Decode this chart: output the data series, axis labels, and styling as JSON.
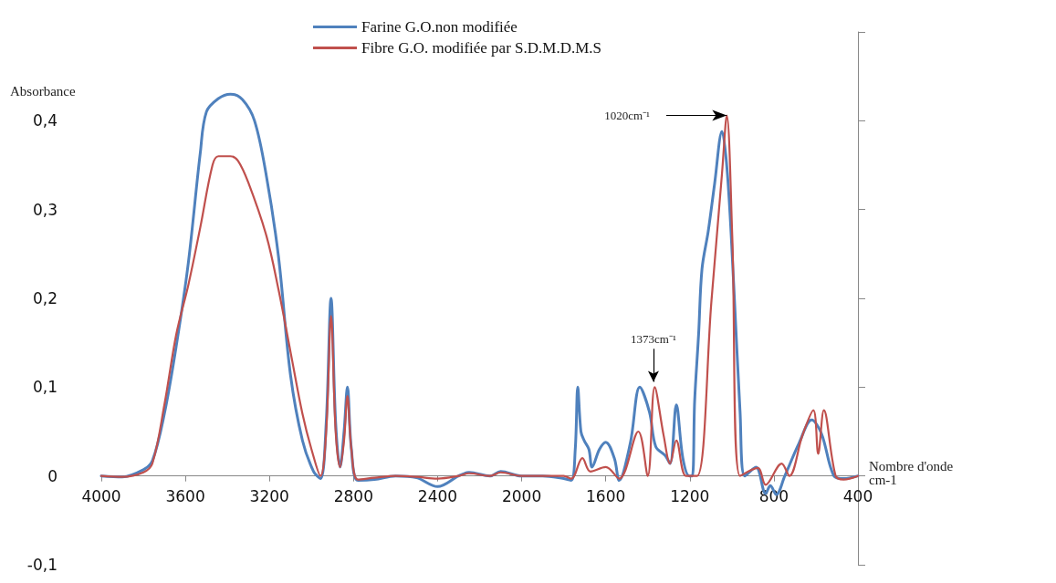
{
  "chart_data": {
    "type": "line",
    "xlabel": "Nombre d'onde\ncm-1",
    "ylabel": "Absorbance",
    "xlim": [
      4000,
      400
    ],
    "xticks": [
      4000,
      3600,
      3200,
      2800,
      2400,
      2000,
      1600,
      1200,
      800,
      400
    ],
    "ylim": [
      -0.1,
      0.5
    ],
    "yticks": [
      {
        "value": -0.1,
        "label": "-0,1"
      },
      {
        "value": 0,
        "label": "0"
      },
      {
        "value": 0.1,
        "label": "0,1"
      },
      {
        "value": 0.2,
        "label": "0,2"
      },
      {
        "value": 0.3,
        "label": "0,3"
      },
      {
        "value": 0.4,
        "label": "0,4"
      },
      {
        "value": 0.5,
        "label": null
      }
    ],
    "grid": false,
    "legend": "top",
    "marker": "none",
    "line_style": "solid",
    "annotations": [
      "1020cm⁻¹",
      {
        "text": "1373cm⁻¹",
        "x": 1373,
        "y": 0.106
      }
    ],
    "series": [
      {
        "name": "Farine G.O.non modifiée",
        "color": "#4f81bd",
        "x": [
          4000,
          3900,
          3800,
          3757,
          3700,
          3643,
          3586,
          3529,
          3500,
          3443,
          3386,
          3329,
          3271,
          3214,
          3157,
          3100,
          3043,
          2990,
          2957,
          2930,
          2907,
          2885,
          2864,
          2845,
          2829,
          2810,
          2779,
          2700,
          2600,
          2500,
          2400,
          2300,
          2250,
          2150,
          2100,
          2000,
          1900,
          1800,
          1764,
          1745,
          1733,
          1718,
          1703,
          1680,
          1665,
          1630,
          1600,
          1559,
          1536,
          1483,
          1438,
          1392,
          1362,
          1317,
          1294,
          1264,
          1233,
          1203,
          1188,
          1177,
          1158,
          1142,
          1112,
          1082,
          1047,
          1021,
          991,
          961,
          938,
          885,
          839,
          817,
          789,
          748,
          680,
          620,
          574,
          514,
          468,
          400
        ],
        "values": [
          0,
          -0.001,
          0.007,
          0.017,
          0.07,
          0.147,
          0.24,
          0.364,
          0.41,
          0.425,
          0.43,
          0.424,
          0.4,
          0.337,
          0.247,
          0.114,
          0.04,
          0.005,
          -0.003,
          0.06,
          0.2,
          0.06,
          0.01,
          0.05,
          0.1,
          0.03,
          -0.005,
          -0.004,
          0,
          -0.002,
          -0.012,
          0,
          0.004,
          0,
          0.005,
          0,
          0,
          -0.003,
          -0.005,
          0.03,
          0.1,
          0.05,
          0.04,
          0.03,
          0.01,
          0.03,
          0.038,
          0.02,
          -0.005,
          0.037,
          0.1,
          0.072,
          0.033,
          0.023,
          0.014,
          0.08,
          0.02,
          0,
          0,
          0.084,
          0.16,
          0.233,
          0.276,
          0.329,
          0.388,
          0.34,
          0.215,
          0.073,
          0,
          0.01,
          -0.02,
          -0.011,
          -0.021,
          0,
          0.037,
          0.063,
          0.048,
          0,
          -0.003,
          0
        ]
      },
      {
        "name": "Fibre G.O. modifiée par S.D.M.D.M.S",
        "color": "#c0504d",
        "x": [
          4000,
          3900,
          3800,
          3757,
          3700,
          3643,
          3586,
          3529,
          3471,
          3443,
          3386,
          3350,
          3300,
          3214,
          3157,
          3100,
          3043,
          3000,
          2957,
          2930,
          2907,
          2885,
          2864,
          2845,
          2829,
          2810,
          2779,
          2700,
          2600,
          2500,
          2400,
          2300,
          2250,
          2150,
          2100,
          2000,
          1900,
          1800,
          1764,
          1711,
          1673,
          1600,
          1536,
          1445,
          1400,
          1367,
          1324,
          1294,
          1264,
          1218,
          1165,
          1097,
          1047,
          1024,
          998,
          961,
          877,
          839,
          763,
          726,
          665,
          612,
          589,
          562,
          506,
          468,
          400
        ],
        "values": [
          0,
          -0.001,
          0.004,
          0.014,
          0.08,
          0.16,
          0.215,
          0.28,
          0.35,
          0.36,
          0.36,
          0.355,
          0.33,
          0.27,
          0.21,
          0.14,
          0.07,
          0.03,
          0,
          0.05,
          0.18,
          0.05,
          0.01,
          0.04,
          0.09,
          0.03,
          -0.004,
          -0.002,
          0,
          -0.001,
          -0.003,
          0,
          0.003,
          0,
          0.004,
          0,
          0,
          0,
          -0.003,
          0.02,
          0.005,
          0.01,
          -0.003,
          0.05,
          0,
          0.1,
          0.045,
          0.014,
          0.04,
          0,
          0,
          0.197,
          0.34,
          0.406,
          0.27,
          0,
          0.009,
          -0.01,
          0.014,
          0,
          0.045,
          0.074,
          0.025,
          0.074,
          0,
          -0.004,
          0
        ]
      }
    ]
  }
}
